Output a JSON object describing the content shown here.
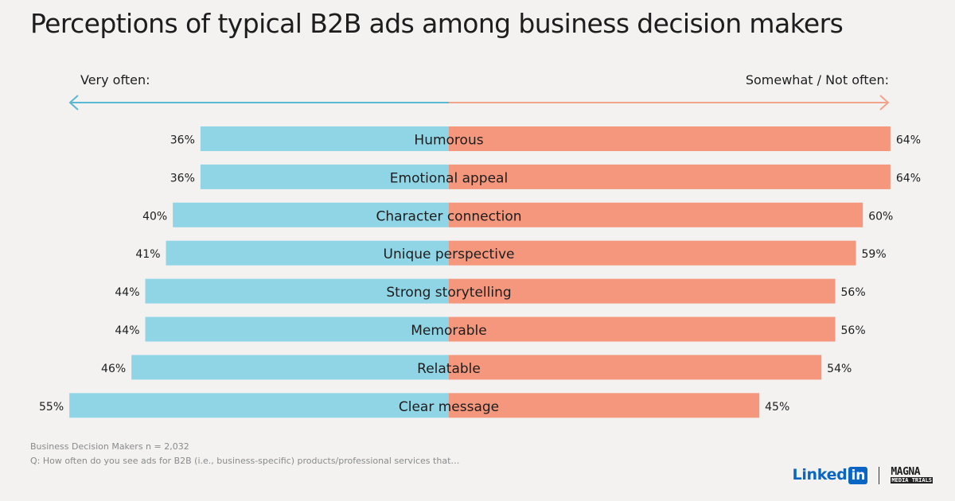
{
  "title": "Perceptions of typical B2B ads among business decision makers",
  "colors": {
    "left": "#90d5e6",
    "right": "#f4977d",
    "left_arrow": "#5ab9d2",
    "right_arrow": "#f1a48a",
    "text": "#1d1d1d",
    "linkedin": "#0a66c2"
  },
  "chart_data": {
    "type": "bar",
    "orientation": "horizontal-diverging",
    "left_label": "Very often:",
    "right_label": "Somewhat / Not often:",
    "categories": [
      "Humorous",
      "Emotional appeal",
      "Character connection",
      "Unique perspective",
      "Strong storytelling",
      "Memorable",
      "Relatable",
      "Clear message"
    ],
    "series": [
      {
        "name": "Very often:",
        "values": [
          36,
          36,
          40,
          41,
          44,
          44,
          46,
          55
        ]
      },
      {
        "name": "Somewhat / Not often:",
        "values": [
          64,
          64,
          60,
          59,
          56,
          56,
          54,
          45
        ]
      }
    ],
    "unit": "%"
  },
  "footnotes": [
    "Business Decision Makers n = 2,032",
    "Q: How often do you see ads for B2B (i.e., business-specific) products/professional services that…"
  ],
  "logos": {
    "linkedin_text": "Linked",
    "linkedin_box": "in",
    "magna_top": "MAGNA",
    "magna_bottom": "MEDIA TRIALS"
  }
}
